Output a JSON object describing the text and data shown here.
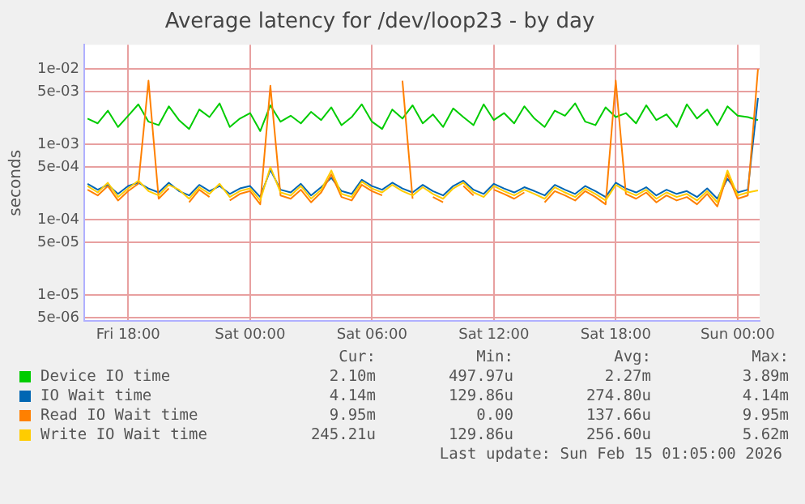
{
  "chart_data": {
    "type": "line",
    "title": "Average latency for /dev/loop23 - by day",
    "ylabel": "seconds",
    "x": [
      "2026-02-13T16:00",
      "2026-02-13T16:30",
      "2026-02-13T17:00",
      "2026-02-13T17:30",
      "2026-02-13T18:00",
      "2026-02-13T18:30",
      "2026-02-13T19:00",
      "2026-02-13T19:30",
      "2026-02-13T20:00",
      "2026-02-13T20:30",
      "2026-02-13T21:00",
      "2026-02-13T21:30",
      "2026-02-13T22:00",
      "2026-02-13T22:30",
      "2026-02-13T23:00",
      "2026-02-13T23:30",
      "2026-02-14T00:00",
      "2026-02-14T00:30",
      "2026-02-14T01:00",
      "2026-02-14T01:30",
      "2026-02-14T02:00",
      "2026-02-14T02:30",
      "2026-02-14T03:00",
      "2026-02-14T03:30",
      "2026-02-14T04:00",
      "2026-02-14T04:30",
      "2026-02-14T05:00",
      "2026-02-14T05:30",
      "2026-02-14T06:00",
      "2026-02-14T06:30",
      "2026-02-14T07:00",
      "2026-02-14T07:30",
      "2026-02-14T08:00",
      "2026-02-14T08:30",
      "2026-02-14T09:00",
      "2026-02-14T09:30",
      "2026-02-14T10:00",
      "2026-02-14T10:30",
      "2026-02-14T11:00",
      "2026-02-14T11:30",
      "2026-02-14T12:00",
      "2026-02-14T12:30",
      "2026-02-14T13:00",
      "2026-02-14T13:30",
      "2026-02-14T14:00",
      "2026-02-14T14:30",
      "2026-02-14T15:00",
      "2026-02-14T15:30",
      "2026-02-14T16:00",
      "2026-02-14T16:30",
      "2026-02-14T17:00",
      "2026-02-14T17:30",
      "2026-02-14T18:00",
      "2026-02-14T18:30",
      "2026-02-14T19:00",
      "2026-02-14T19:30",
      "2026-02-14T20:00",
      "2026-02-14T20:30",
      "2026-02-14T21:00",
      "2026-02-14T21:30",
      "2026-02-14T22:00",
      "2026-02-14T22:30",
      "2026-02-14T23:00",
      "2026-02-14T23:30",
      "2026-02-15T00:00",
      "2026-02-15T00:30",
      "2026-02-15T01:00"
    ],
    "series": [
      {
        "name": "Device IO time",
        "color": "#00cc00",
        "values": [
          0.0022,
          0.0019,
          0.0028,
          0.0017,
          0.0024,
          0.0034,
          0.002,
          0.0018,
          0.0032,
          0.0021,
          0.0016,
          0.0029,
          0.0023,
          0.0035,
          0.0017,
          0.0022,
          0.0026,
          0.0015,
          0.0033,
          0.002,
          0.0024,
          0.0019,
          0.0027,
          0.0021,
          0.0031,
          0.0018,
          0.0023,
          0.0034,
          0.002,
          0.0016,
          0.0029,
          0.0022,
          0.0033,
          0.0019,
          0.0025,
          0.0017,
          0.003,
          0.0023,
          0.0018,
          0.0034,
          0.0021,
          0.0026,
          0.0019,
          0.0032,
          0.0022,
          0.0017,
          0.0028,
          0.0024,
          0.0035,
          0.002,
          0.0018,
          0.0031,
          0.0023,
          0.0026,
          0.0019,
          0.0033,
          0.0021,
          0.0025,
          0.0017,
          0.0034,
          0.0022,
          0.0029,
          0.0018,
          0.0032,
          0.0024,
          0.0023,
          0.0021
        ]
      },
      {
        "name": "IO Wait time",
        "color": "#0066b3",
        "values": [
          0.0003,
          0.00025,
          0.00029,
          0.00022,
          0.00028,
          0.00031,
          0.00026,
          0.00023,
          0.00031,
          0.00024,
          0.00021,
          0.00029,
          0.00024,
          0.00028,
          0.00022,
          0.00026,
          0.00028,
          0.0002,
          0.00046,
          0.00025,
          0.00023,
          0.0003,
          0.00021,
          0.00027,
          0.00036,
          0.00024,
          0.00022,
          0.00034,
          0.00028,
          0.00025,
          0.00031,
          0.00026,
          0.00023,
          0.00029,
          0.00024,
          0.00021,
          0.00028,
          0.00033,
          0.00025,
          0.00022,
          0.0003,
          0.00026,
          0.00023,
          0.00027,
          0.00024,
          0.00021,
          0.00029,
          0.00025,
          0.00022,
          0.00028,
          0.00024,
          0.0002,
          0.00031,
          0.00026,
          0.00023,
          0.00027,
          0.00021,
          0.00025,
          0.00022,
          0.00024,
          0.0002,
          0.00026,
          0.00019,
          0.00035,
          0.00023,
          0.00025,
          0.00414
        ]
      },
      {
        "name": "Read IO Wait time",
        "color": "#ff8000",
        "values": [
          0.00025,
          0.00021,
          0.00028,
          0.00018,
          0.00024,
          0.0003,
          0.007,
          0.00019,
          0.00026,
          null,
          0.00017,
          0.00025,
          0.0002,
          null,
          0.00018,
          0.00022,
          0.00024,
          0.00016,
          0.006,
          0.00021,
          0.00019,
          0.00025,
          0.00017,
          0.00023,
          0.0004,
          0.0002,
          0.00018,
          0.00029,
          0.00024,
          0.00021,
          null,
          0.007,
          0.00019,
          null,
          0.0002,
          0.00017,
          null,
          0.00028,
          0.00021,
          null,
          0.00025,
          0.00022,
          0.00019,
          0.00023,
          null,
          0.00017,
          0.00024,
          0.00021,
          0.00018,
          0.00024,
          0.0002,
          0.00016,
          0.007,
          0.00022,
          0.00019,
          0.00023,
          0.00017,
          0.00021,
          0.00018,
          0.0002,
          0.00016,
          0.00022,
          0.00015,
          0.0004,
          0.00019,
          0.00021,
          0.00995
        ]
      },
      {
        "name": "Write IO Wait time",
        "color": "#ffcc00",
        "values": [
          0.00028,
          0.00023,
          0.00031,
          0.0002,
          0.00026,
          0.00033,
          0.00024,
          0.00021,
          0.00029,
          0.00025,
          0.00019,
          0.00027,
          0.00022,
          0.0003,
          0.0002,
          0.00024,
          0.00026,
          0.00018,
          0.0005,
          0.00023,
          0.00021,
          0.00028,
          0.00019,
          0.00025,
          0.00045,
          0.00022,
          0.0002,
          0.00032,
          0.00026,
          0.00023,
          0.00029,
          0.00024,
          0.00021,
          0.00027,
          0.00022,
          0.00019,
          0.00026,
          0.00031,
          0.00023,
          0.0002,
          0.00028,
          0.00024,
          0.00021,
          0.00025,
          0.00022,
          0.00019,
          0.00027,
          0.00023,
          0.0002,
          0.00026,
          0.00022,
          0.00018,
          0.00029,
          0.00024,
          0.00021,
          0.00025,
          0.00019,
          0.00023,
          0.0002,
          0.00022,
          0.00018,
          0.00024,
          0.00017,
          0.00045,
          0.00021,
          0.00023,
          0.000245
        ]
      }
    ],
    "xlim": [
      "2026-02-13T15:50",
      "2026-02-15T01:05"
    ],
    "xticks": [
      {
        "value": "2026-02-13T18:00",
        "label": "Fri 18:00"
      },
      {
        "value": "2026-02-14T00:00",
        "label": "Sat 00:00"
      },
      {
        "value": "2026-02-14T06:00",
        "label": "Sat 06:00"
      },
      {
        "value": "2026-02-14T12:00",
        "label": "Sat 12:00"
      },
      {
        "value": "2026-02-14T18:00",
        "label": "Sat 18:00"
      },
      {
        "value": "2026-02-15T00:00",
        "label": "Sun 00:00"
      }
    ],
    "ylim": [
      4.5e-06,
      0.021
    ],
    "yticks": [
      {
        "value": 5e-06,
        "label": "5e-06"
      },
      {
        "value": 1e-05,
        "label": "1e-05"
      },
      {
        "value": 5e-05,
        "label": "5e-05"
      },
      {
        "value": 0.0001,
        "label": "1e-04"
      },
      {
        "value": 0.0005,
        "label": "5e-04"
      },
      {
        "value": 0.001,
        "label": "1e-03"
      },
      {
        "value": 0.005,
        "label": "5e-03"
      },
      {
        "value": 0.01,
        "label": "1e-02"
      }
    ],
    "log": "y",
    "grid": true,
    "legend": "bottom",
    "marker": "none",
    "line_style": "solid",
    "annotations": [
      "Cur:",
      "Min:",
      "Avg:",
      "Max:",
      "2.10m",
      "497.97u",
      "2.27m",
      "3.89m",
      "4.14m",
      "129.86u",
      "274.80u",
      "4.14m",
      "9.95m",
      "0.00",
      "137.66u",
      "9.95m",
      "245.21u",
      "129.86u",
      "256.60u",
      "5.62m",
      "Last update: Sun Feb 15 01:05:00 2026"
    ]
  }
}
